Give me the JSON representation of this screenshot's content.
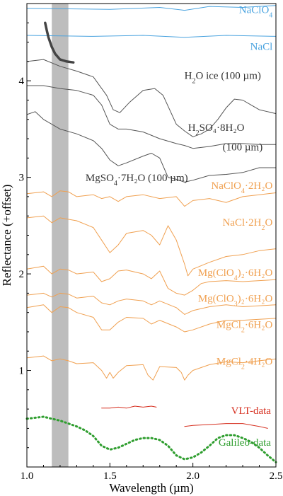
{
  "chart_data": {
    "type": "line",
    "title": "",
    "xlabel": "Wavelength (µm)",
    "ylabel": "Reflectance (+offset)",
    "xlim": [
      1.0,
      2.5
    ],
    "ylim": [
      0,
      4.8
    ],
    "x_ticks": [
      "1.0",
      "1.5",
      "2.0",
      "2.5"
    ],
    "y_ticks": [
      "1",
      "2",
      "3",
      "4"
    ],
    "shaded_band": {
      "x_start": 1.15,
      "x_end": 1.25,
      "color": "#bdbdbd"
    },
    "colors": {
      "blue": "#4aa3df",
      "gray": "#555555",
      "orange": "#f0a050",
      "red": "#d62f1f",
      "green": "#2f9e2f"
    },
    "series": [
      {
        "name": "NaClO₄",
        "color": "#4aa3df",
        "style": "solid",
        "x": [
          1.0,
          1.5,
          1.8,
          1.95,
          2.1,
          2.3,
          2.5
        ],
        "y": [
          4.75,
          4.74,
          4.76,
          4.73,
          4.77,
          4.76,
          4.78
        ]
      },
      {
        "name": "NaCl",
        "color": "#4aa3df",
        "style": "solid",
        "x": [
          1.0,
          1.4,
          1.7,
          1.95,
          2.2,
          2.5
        ],
        "y": [
          4.47,
          4.46,
          4.47,
          4.45,
          4.47,
          4.46
        ]
      },
      {
        "name": "H₂O ice (100 µm)",
        "color": "#555555",
        "style": "solid",
        "x": [
          1.0,
          1.1,
          1.2,
          1.3,
          1.4,
          1.48,
          1.52,
          1.56,
          1.62,
          1.7,
          1.77,
          1.82,
          1.86,
          1.9,
          1.95,
          2.0,
          2.05,
          2.1,
          2.15,
          2.2,
          2.25,
          2.3,
          2.35,
          2.4,
          2.45,
          2.5
        ],
        "y": [
          4.2,
          4.22,
          4.15,
          4.1,
          4.04,
          3.85,
          3.7,
          3.67,
          3.78,
          3.9,
          3.92,
          3.85,
          3.7,
          3.55,
          3.48,
          3.42,
          3.45,
          3.5,
          3.6,
          3.72,
          3.81,
          3.8,
          3.75,
          3.7,
          3.68,
          3.66
        ]
      },
      {
        "name": "H₂O ice (100 µm)",
        "color": "#444444",
        "style": "thick",
        "x": [
          1.11,
          1.12,
          1.13,
          1.15,
          1.17,
          1.2,
          1.24,
          1.28
        ],
        "y": [
          4.6,
          4.52,
          4.45,
          4.35,
          4.28,
          4.22,
          4.2,
          4.19
        ]
      },
      {
        "name": "H₂SO₄·8H₂O (100 µm)",
        "color": "#555555",
        "style": "solid",
        "x": [
          1.0,
          1.1,
          1.2,
          1.3,
          1.4,
          1.45,
          1.5,
          1.55,
          1.6,
          1.7,
          1.8,
          1.9,
          1.95,
          2.0,
          2.1,
          2.2,
          2.3,
          2.4,
          2.5
        ],
        "y": [
          3.95,
          3.95,
          3.92,
          3.9,
          3.85,
          3.75,
          3.55,
          3.5,
          3.5,
          3.47,
          3.4,
          3.35,
          3.33,
          3.3,
          3.32,
          3.35,
          3.35,
          3.34,
          3.34
        ]
      },
      {
        "name": "MgSO₄·7H₂O (100 µm)",
        "color": "#555555",
        "style": "solid",
        "x": [
          1.0,
          1.05,
          1.1,
          1.15,
          1.2,
          1.3,
          1.4,
          1.45,
          1.5,
          1.55,
          1.6,
          1.7,
          1.75,
          1.8,
          1.85,
          1.9,
          1.95,
          2.0,
          2.1,
          2.2,
          2.3,
          2.4,
          2.5
        ],
        "y": [
          3.65,
          3.68,
          3.6,
          3.55,
          3.5,
          3.45,
          3.38,
          3.3,
          3.18,
          3.12,
          3.15,
          3.22,
          3.25,
          3.2,
          3.0,
          2.98,
          2.95,
          2.97,
          3.02,
          3.03,
          3.05,
          3.1,
          3.1
        ]
      },
      {
        "name": "NaClO₄·2H₂O",
        "color": "#f0a050",
        "style": "solid",
        "x": [
          1.0,
          1.1,
          1.15,
          1.2,
          1.25,
          1.3,
          1.4,
          1.45,
          1.5,
          1.55,
          1.6,
          1.7,
          1.8,
          1.9,
          1.95,
          2.0,
          2.1,
          2.2,
          2.3,
          2.4,
          2.5
        ],
        "y": [
          2.83,
          2.85,
          2.8,
          2.86,
          2.85,
          2.8,
          2.82,
          2.78,
          2.8,
          2.75,
          2.8,
          2.82,
          2.78,
          2.8,
          2.7,
          2.76,
          2.78,
          2.74,
          2.8,
          2.82,
          2.84
        ]
      },
      {
        "name": "NaCl·2H₂O",
        "color": "#f0a050",
        "style": "solid",
        "x": [
          1.0,
          1.1,
          1.15,
          1.2,
          1.3,
          1.4,
          1.45,
          1.5,
          1.55,
          1.6,
          1.7,
          1.75,
          1.8,
          1.85,
          1.9,
          1.95,
          1.97,
          2.0,
          2.1,
          2.2,
          2.3,
          2.4,
          2.5
        ],
        "y": [
          2.58,
          2.6,
          2.53,
          2.58,
          2.55,
          2.48,
          2.35,
          2.22,
          2.3,
          2.42,
          2.45,
          2.4,
          2.3,
          2.5,
          2.35,
          2.1,
          1.98,
          2.05,
          2.12,
          2.18,
          2.2,
          2.24,
          2.26
        ]
      },
      {
        "name": "Mg(ClO₄)₂·6H₂O",
        "color": "#f0a050",
        "style": "solid",
        "x": [
          1.0,
          1.1,
          1.15,
          1.2,
          1.25,
          1.3,
          1.4,
          1.45,
          1.5,
          1.55,
          1.6,
          1.7,
          1.75,
          1.8,
          1.85,
          1.9,
          1.95,
          2.0,
          2.05,
          2.1,
          2.2,
          2.3,
          2.4,
          2.5
        ],
        "y": [
          2.05,
          2.08,
          2.0,
          2.05,
          2.04,
          2.0,
          2.02,
          1.92,
          1.95,
          2.03,
          2.04,
          2.0,
          1.95,
          2.03,
          1.85,
          1.8,
          1.78,
          1.83,
          1.9,
          1.92,
          1.93,
          1.92,
          1.93,
          1.94
        ]
      },
      {
        "name": "Mg(ClO₃)₂·6H₂O",
        "color": "#f0a050",
        "style": "solid",
        "x": [
          1.0,
          1.1,
          1.15,
          1.2,
          1.25,
          1.3,
          1.4,
          1.45,
          1.5,
          1.55,
          1.6,
          1.7,
          1.75,
          1.8,
          1.9,
          1.95,
          2.0,
          2.1,
          2.2,
          2.3,
          2.4,
          2.5
        ],
        "y": [
          1.78,
          1.8,
          1.76,
          1.8,
          1.79,
          1.75,
          1.77,
          1.7,
          1.68,
          1.72,
          1.74,
          1.72,
          1.68,
          1.72,
          1.65,
          1.58,
          1.62,
          1.66,
          1.68,
          1.66,
          1.67,
          1.68
        ]
      },
      {
        "name": "MgCl₂·6H₂O",
        "color": "#f0a050",
        "style": "solid",
        "x": [
          1.0,
          1.1,
          1.15,
          1.2,
          1.25,
          1.3,
          1.4,
          1.45,
          1.5,
          1.55,
          1.6,
          1.7,
          1.75,
          1.8,
          1.9,
          1.95,
          2.0,
          2.1,
          2.2,
          2.3,
          2.4,
          2.5
        ],
        "y": [
          1.65,
          1.68,
          1.6,
          1.66,
          1.65,
          1.6,
          1.55,
          1.42,
          1.42,
          1.5,
          1.55,
          1.54,
          1.48,
          1.52,
          1.45,
          1.4,
          1.42,
          1.48,
          1.52,
          1.52,
          1.53,
          1.54
        ]
      },
      {
        "name": "MgCl₂·4H₂O",
        "color": "#f0a050",
        "style": "solid",
        "x": [
          1.0,
          1.1,
          1.15,
          1.2,
          1.25,
          1.3,
          1.4,
          1.45,
          1.48,
          1.5,
          1.52,
          1.55,
          1.6,
          1.7,
          1.73,
          1.76,
          1.8,
          1.9,
          1.93,
          1.95,
          1.97,
          2.0,
          2.1,
          2.2,
          2.3,
          2.4,
          2.5
        ],
        "y": [
          1.13,
          1.15,
          1.1,
          1.12,
          1.1,
          1.07,
          1.08,
          1.0,
          0.92,
          0.98,
          0.92,
          0.98,
          1.05,
          1.06,
          0.95,
          0.9,
          1.04,
          1.03,
          0.98,
          0.9,
          0.95,
          1.0,
          1.06,
          1.09,
          1.08,
          1.1,
          1.12
        ]
      },
      {
        "name": "VLT-data",
        "color": "#d62f1f",
        "style": "solid",
        "x": [
          1.45,
          1.5,
          1.55,
          1.6,
          1.65,
          1.7,
          1.75,
          1.78
        ],
        "y": [
          0.61,
          0.61,
          0.62,
          0.61,
          0.63,
          0.62,
          0.63,
          0.62
        ]
      },
      {
        "name": "VLT-data",
        "color": "#d62f1f",
        "style": "solid",
        "x": [
          1.95,
          2.0,
          2.1,
          2.2,
          2.3,
          2.4,
          2.45
        ],
        "y": [
          0.42,
          0.43,
          0.44,
          0.45,
          0.45,
          0.42,
          0.4
        ]
      },
      {
        "name": "Galileo-data",
        "color": "#2f9e2f",
        "style": "dotted",
        "x": [
          1.0,
          1.05,
          1.1,
          1.15,
          1.2,
          1.25,
          1.3,
          1.35,
          1.4,
          1.45,
          1.5,
          1.55,
          1.6,
          1.65,
          1.7,
          1.75,
          1.8,
          1.85,
          1.9,
          1.95,
          2.0,
          2.05,
          2.1,
          2.15,
          2.2,
          2.25,
          2.3,
          2.35,
          2.4,
          2.45,
          2.5
        ],
        "y": [
          0.5,
          0.51,
          0.52,
          0.5,
          0.48,
          0.45,
          0.42,
          0.38,
          0.32,
          0.22,
          0.18,
          0.2,
          0.24,
          0.28,
          0.3,
          0.3,
          0.28,
          0.22,
          0.12,
          0.08,
          0.1,
          0.15,
          0.22,
          0.3,
          0.33,
          0.33,
          0.3,
          0.26,
          0.2,
          0.12,
          0.05
        ]
      }
    ],
    "labels": [
      {
        "text": "NaClO",
        "sub": "4",
        "rest": "",
        "x": 2.48,
        "y": 4.7,
        "color": "#4aa3df"
      },
      {
        "text": "NaCl",
        "sub": "",
        "rest": "",
        "x": 2.48,
        "y": 4.32,
        "color": "#4aa3df"
      },
      {
        "text": "H",
        "sub": "2",
        "rest": "O ice (100 µm)",
        "x": 2.41,
        "y": 4.02,
        "color": "#333333"
      },
      {
        "text": "H",
        "sub": "2",
        "rest": "SO₄·8H₂O",
        "x": 2.31,
        "y": 3.48,
        "color": "#333333"
      },
      {
        "text": "(100 µm)",
        "sub": "",
        "rest": "",
        "x": 2.42,
        "y": 3.28,
        "color": "#333333"
      },
      {
        "text": "MgSO",
        "sub": "4",
        "rest": "·7H₂O (100 µm)",
        "x": 1.97,
        "y": 2.96,
        "color": "#333333"
      },
      {
        "text": "NaClO",
        "sub": "4",
        "rest": "·2H₂O",
        "x": 2.48,
        "y": 2.88,
        "color": "#f0a050"
      },
      {
        "text": "NaCl·2H",
        "sub": "2",
        "rest": "O",
        "x": 2.48,
        "y": 2.5,
        "color": "#f0a050"
      },
      {
        "text": "Mg(ClO",
        "sub": "4",
        "rest": ")₂·6H₂O",
        "x": 2.48,
        "y": 1.98,
        "color": "#f0a050"
      },
      {
        "text": "Mg(ClO",
        "sub": "3",
        "rest": ")₂·6H₂O",
        "x": 2.48,
        "y": 1.71,
        "color": "#f0a050"
      },
      {
        "text": "MgCl",
        "sub": "2",
        "rest": "·6H₂O",
        "x": 2.48,
        "y": 1.44,
        "color": "#f0a050"
      },
      {
        "text": "MgCl",
        "sub": "2",
        "rest": "·4H₂O",
        "x": 2.48,
        "y": 1.06,
        "color": "#f0a050"
      },
      {
        "text": "VLT-data",
        "sub": "",
        "rest": "",
        "x": 2.47,
        "y": 0.55,
        "color": "#d62f1f"
      },
      {
        "text": "Galileo-data",
        "sub": "",
        "rest": "",
        "x": 2.47,
        "y": 0.22,
        "color": "#2f9e2f"
      }
    ]
  }
}
